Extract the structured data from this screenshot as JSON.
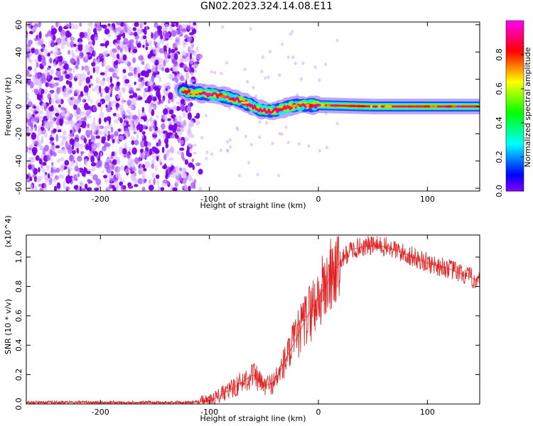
{
  "title": "GN02.2023.324.14.08.E11",
  "chart_data": [
    {
      "type": "heatmap",
      "xlabel": "Height of straight line (km)",
      "ylabel": "Frequency (Hz)",
      "xlim": [
        -268,
        148
      ],
      "ylim": [
        -62,
        62
      ],
      "xticks": [
        -200,
        -100,
        0,
        100
      ],
      "yticks": [
        -60,
        -40,
        -20,
        0,
        20,
        40,
        60
      ],
      "colorbar": {
        "label": "Normalized spectral amplitude",
        "range": [
          0,
          1
        ],
        "ticks": [
          "0.0",
          "0.2",
          "0.4",
          "0.6",
          "0.8"
        ],
        "colormap": "rainbow (violet → blue → cyan → green → yellow → red → magenta)"
      },
      "features": {
        "noise_region_x": [
          -268,
          -113
        ],
        "signal_track": [
          {
            "x": -125,
            "freq": 11
          },
          {
            "x": -100,
            "freq": 9
          },
          {
            "x": -90,
            "freq": 8
          },
          {
            "x": -80,
            "freq": 6
          },
          {
            "x": -70,
            "freq": 4
          },
          {
            "x": -60,
            "freq": 0
          },
          {
            "x": -50,
            "freq": -3
          },
          {
            "x": -40,
            "freq": -3
          },
          {
            "x": -30,
            "freq": -1
          },
          {
            "x": -20,
            "freq": 1
          },
          {
            "x": -10,
            "freq": 1
          },
          {
            "x": 0,
            "freq": 1
          },
          {
            "x": 50,
            "freq": 0
          },
          {
            "x": 100,
            "freq": 0
          },
          {
            "x": 148,
            "freq": 0
          }
        ]
      }
    },
    {
      "type": "line",
      "xlabel": "Height of straight line (km)",
      "ylabel": "SNR (10 * v/v)",
      "yunit_multiplier": "(x10^4)",
      "xlim": [
        -268,
        148
      ],
      "ylim": [
        0,
        1.15
      ],
      "xticks": [
        -200,
        -100,
        0,
        100
      ],
      "yticks": [
        "0.0",
        "0.2",
        "0.4",
        "0.6",
        "0.8",
        "1.0"
      ],
      "line_color": "#e02020",
      "series": [
        {
          "x": [
            -268,
            -200,
            -120,
            -100,
            -90,
            -80,
            -70,
            -60,
            -50,
            -40,
            -30,
            -20,
            -10,
            0,
            10,
            20,
            30,
            40,
            50,
            60,
            70,
            80,
            90,
            100,
            110,
            120,
            130,
            140,
            148
          ],
          "values": [
            0.01,
            0.01,
            0.01,
            0.02,
            0.06,
            0.1,
            0.15,
            0.2,
            0.12,
            0.15,
            0.3,
            0.45,
            0.6,
            0.72,
            0.85,
            0.97,
            1.05,
            1.07,
            1.08,
            1.07,
            1.05,
            1.02,
            0.99,
            0.96,
            0.94,
            0.92,
            0.89,
            0.86,
            0.83
          ]
        }
      ]
    }
  ]
}
